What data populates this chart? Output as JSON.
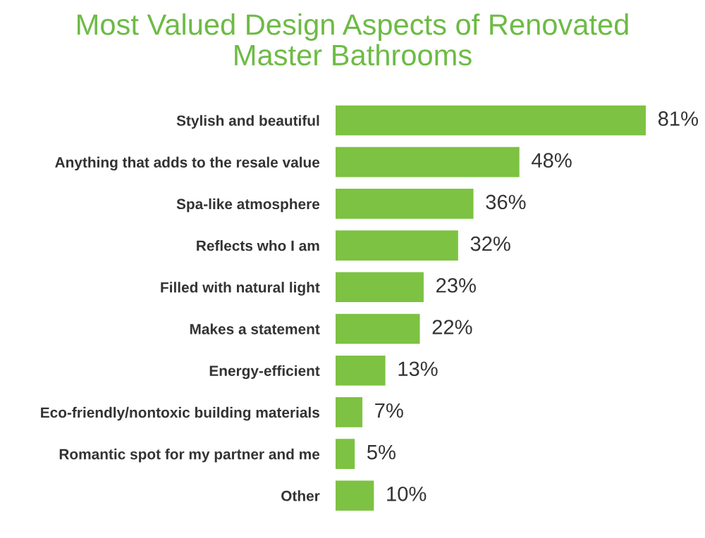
{
  "chart_data": {
    "type": "bar",
    "orientation": "horizontal",
    "title": "Most Valued Design Aspects of Renovated\nMaster Bathrooms",
    "categories": [
      "Stylish and beautiful",
      "Anything that adds to the resale value",
      "Spa-like atmosphere",
      "Reflects who I am",
      "Filled with natural light",
      "Makes a statement",
      "Energy-efficient",
      "Eco-friendly/nontoxic building materials",
      "Romantic spot for my partner and me",
      "Other"
    ],
    "values": [
      81,
      48,
      36,
      32,
      23,
      22,
      13,
      7,
      5,
      10
    ],
    "value_labels": [
      "81%",
      "48%",
      "36%",
      "32%",
      "23%",
      "22%",
      "13%",
      "7%",
      "5%",
      "10%"
    ],
    "color": "#7dc242",
    "grid": false,
    "legend": false
  }
}
